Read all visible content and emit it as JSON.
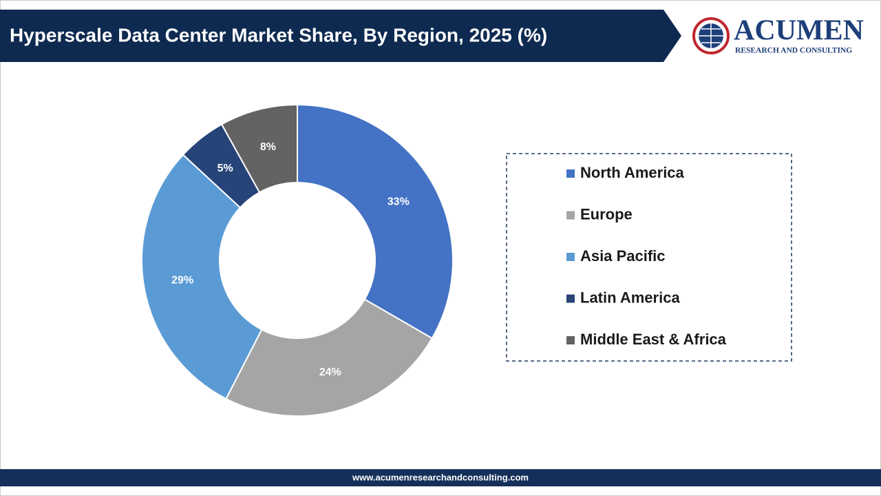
{
  "header": {
    "title": "Hyperscale Data Center Market Share, By Region, 2025 (%)"
  },
  "logo": {
    "name": "ACUMEN",
    "tagline": "RESEARCH AND CONSULTING"
  },
  "chart_data": {
    "type": "pie",
    "categories": [
      "North America",
      "Europe",
      "Asia Pacific",
      "Latin America",
      "Middle East & Africa"
    ],
    "values": [
      33,
      24,
      29,
      5,
      8
    ],
    "value_labels": [
      "33%",
      "24%",
      "29%",
      "5%",
      "8%"
    ],
    "colors": [
      "#4472c4",
      "#a5a5a5",
      "#5b9bd5",
      "#264478",
      "#636363"
    ],
    "legend": "right"
  },
  "footer": {
    "url": "www.acumenresearchandconsulting.com"
  }
}
